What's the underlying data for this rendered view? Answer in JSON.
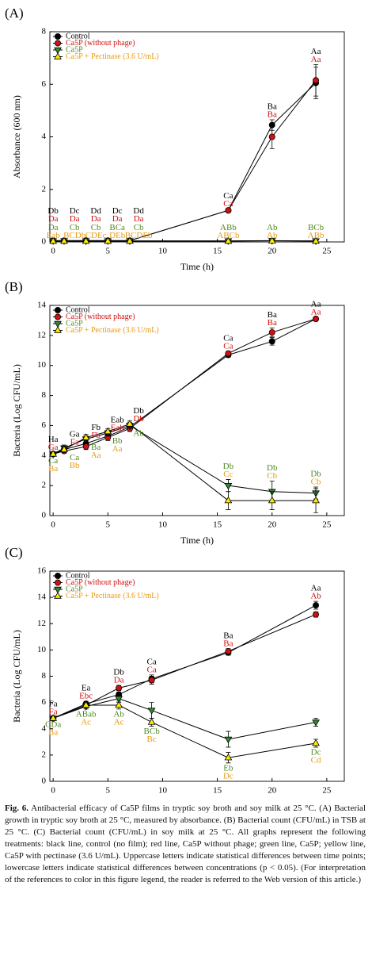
{
  "chart_data": [
    {
      "type": "line",
      "panel": "(A)",
      "y_label": "Absorbance (600 nm)",
      "x_label": "Time (h)",
      "legend": "upper left",
      "x": [
        0,
        1,
        3,
        5,
        7,
        16,
        20,
        24
      ],
      "xlim": [
        -0.3,
        26.6
      ],
      "xticks": [
        0,
        5,
        10,
        15,
        20,
        25
      ],
      "ylim": [
        0,
        8
      ],
      "yticks": [
        0,
        2,
        4,
        6,
        8
      ],
      "series": [
        {
          "name": "Control",
          "color": "#000000",
          "label_color": "#000000",
          "marker": "circle",
          "values": [
            0.05,
            0.05,
            0.05,
            0.05,
            0.05,
            1.2,
            4.45,
            6.05
          ],
          "errors": [
            0,
            0,
            0,
            0,
            0,
            0.05,
            0.2,
            0.6
          ],
          "point_labels": [
            "Db",
            "Dc",
            "Dd",
            "Dc",
            "Dd",
            "Ca",
            "Ba",
            "Aa"
          ]
        },
        {
          "name": "Ca5P (without phage)",
          "color": "#d01010",
          "label_color": "#d01010",
          "marker": "circle",
          "values": [
            0.05,
            0.05,
            0.05,
            0.05,
            0.05,
            1.2,
            4.0,
            6.15
          ],
          "errors": [
            0,
            0,
            0,
            0,
            0,
            0.05,
            0.45,
            0.6
          ],
          "point_labels": [
            "Da",
            "Da",
            "Da",
            "Da",
            "Da",
            "Ca",
            "Ba",
            "Aa"
          ]
        },
        {
          "name": "Ca5P",
          "color": "#2e8b2e",
          "label_color": "#4f8a22",
          "marker": "triangle-down",
          "values": [
            0.04,
            0.04,
            0.04,
            0.04,
            0.04,
            0.04,
            0.05,
            0.04
          ],
          "errors": [
            0,
            0,
            0,
            0,
            0,
            0,
            0,
            0
          ],
          "point_labels": [
            "Da",
            "Cb",
            "Cb",
            "BCa",
            "Cb",
            "ABb",
            "Ab",
            "BCb"
          ]
        },
        {
          "name": "Ca5P + Pectinase (3.6 U/mL)",
          "color": "#ffee00",
          "label_color": "#e89a10",
          "marker": "triangle-up",
          "values": [
            0.03,
            0.03,
            0.03,
            0.03,
            0.03,
            0.03,
            0.04,
            0.03
          ],
          "errors": [
            0,
            0,
            0,
            0,
            0,
            0,
            0,
            0
          ],
          "point_labels": [
            "Eab",
            "BCDb",
            "CDEc",
            "DEb",
            "BCDEb",
            "ABCb",
            "Ab",
            "ABb"
          ]
        }
      ]
    },
    {
      "type": "line",
      "panel": "(B)",
      "y_label": "Bacteria (Log CFU/mL)",
      "x_label": "Time (h)",
      "legend": "upper left",
      "x": [
        0,
        1,
        3,
        5,
        7,
        16,
        20,
        24
      ],
      "xlim": [
        -0.3,
        26.6
      ],
      "xticks": [
        0,
        5,
        10,
        15,
        20,
        25
      ],
      "ylim": [
        0,
        14
      ],
      "yticks": [
        0,
        2,
        4,
        6,
        8,
        10,
        12,
        14
      ],
      "series": [
        {
          "name": "Control",
          "color": "#000000",
          "label_color": "#000000",
          "marker": "circle",
          "values": [
            4.1,
            4.4,
            4.8,
            5.3,
            5.9,
            10.7,
            11.6,
            13.1
          ],
          "errors": [
            0.1,
            0.15,
            0.2,
            0.2,
            0.2,
            0.15,
            0.25,
            0.1
          ],
          "point_labels": [
            "Ha",
            "Ga",
            "Fb",
            "Eab",
            "Db",
            "Ca",
            "Ba",
            "Aa"
          ]
        },
        {
          "name": "Ca5P (without phage)",
          "color": "#d01010",
          "label_color": "#d01010",
          "marker": "circle",
          "values": [
            4.1,
            4.3,
            4.6,
            5.2,
            5.8,
            10.8,
            12.2,
            13.1
          ],
          "errors": [
            0.1,
            0.15,
            0.2,
            0.2,
            0.2,
            0.15,
            0.3,
            0.1
          ],
          "point_labels": [
            "Ga",
            "Fa",
            "Fb",
            "Eab",
            "Db",
            "Ca",
            "Ba",
            "Aa"
          ]
        },
        {
          "name": "Ca5P",
          "color": "#2e8b2e",
          "label_color": "#4f8a22",
          "marker": "triangle-down",
          "values": [
            4.1,
            4.5,
            5.1,
            5.5,
            6.0,
            2.0,
            1.6,
            1.5
          ],
          "errors": [
            0.1,
            0.2,
            0.2,
            0.2,
            0.2,
            0.4,
            0.7,
            0.4
          ],
          "point_labels": [
            "Ca",
            "Ca",
            "Ba",
            "Bb",
            "Ab",
            "Db",
            "Db",
            "Db"
          ]
        },
        {
          "name": "Ca5P + Pectinase (3.6 U/mL)",
          "color": "#ffee00",
          "label_color": "#e89a10",
          "marker": "triangle-up",
          "values": [
            4.1,
            4.4,
            5.2,
            5.6,
            6.1,
            1.0,
            1.0,
            1.0
          ],
          "errors": [
            0.1,
            0.2,
            0.2,
            0.2,
            0.2,
            0.6,
            0.6,
            0.8
          ],
          "point_labels": [
            "Ba",
            "Bb",
            "Aa",
            "Aa",
            null,
            "Cc",
            "Cb",
            "Cb"
          ]
        }
      ]
    },
    {
      "type": "line",
      "panel": "(C)",
      "y_label": "Bacteria (Log CFU/mL)",
      "x_label": "Time (h)",
      "legend": "upper left",
      "x": [
        0,
        3,
        6,
        9,
        16,
        24
      ],
      "xlim": [
        -0.3,
        26.6
      ],
      "xticks": [
        0,
        5,
        10,
        15,
        20,
        25
      ],
      "ylim": [
        0,
        16
      ],
      "yticks": [
        0,
        2,
        4,
        6,
        8,
        10,
        12,
        14,
        16
      ],
      "series": [
        {
          "name": "Control",
          "color": "#000000",
          "label_color": "#000000",
          "marker": "circle",
          "values": [
            4.8,
            5.9,
            6.6,
            7.8,
            9.8,
            13.4
          ],
          "errors": [
            0.1,
            0.2,
            0.2,
            0.3,
            0.2,
            0.3
          ],
          "point_labels": [
            "Fa",
            "Ea",
            "Db",
            "Ca",
            "Ba",
            "Aa"
          ]
        },
        {
          "name": "Ca5P (without phage)",
          "color": "#d01010",
          "label_color": "#d01010",
          "marker": "circle",
          "values": [
            4.8,
            5.8,
            7.1,
            7.7,
            9.9,
            12.7
          ],
          "errors": [
            0.1,
            0.2,
            0.2,
            0.3,
            0.2,
            0.2
          ],
          "point_labels": [
            "Fa",
            "Ebc",
            "Da",
            "Ca",
            "Ba",
            "Ab"
          ]
        },
        {
          "name": "Ca5P",
          "color": "#2e8b2e",
          "label_color": "#4f8a22",
          "marker": "triangle-down",
          "values": [
            4.8,
            5.7,
            6.3,
            5.4,
            3.2,
            4.5
          ],
          "errors": [
            0.1,
            0.2,
            0.3,
            0.6,
            0.6,
            0.3
          ],
          "point_labels": [
            "CDa",
            "ABab",
            "Ab",
            "BCb",
            "Eb",
            "Dc"
          ]
        },
        {
          "name": "Ca5P + Pectinase (3.6 U/mL)",
          "color": "#ffee00",
          "label_color": "#e89a10",
          "marker": "triangle-up",
          "values": [
            4.8,
            5.8,
            5.8,
            4.5,
            1.8,
            2.9
          ],
          "errors": [
            0.1,
            0.2,
            0.3,
            0.3,
            0.4,
            0.3
          ],
          "point_labels": [
            "Ba",
            "Ac",
            "Ac",
            "Bc",
            "Dc",
            "Cd"
          ]
        }
      ]
    }
  ],
  "caption": {
    "label": "Fig. 6.",
    "text": "Antibacterial efficacy of Ca5P films in tryptic soy broth and soy milk at 25 °C. (A) Bacterial growth in tryptic soy broth at 25 °C, measured by absorbance. (B) Bacterial count (CFU/mL) in TSB at 25 °C. (C) Bacterial count (CFU/mL) in soy milk at 25 °C. All graphs represent the following treatments: black line, control (no film); red line, Ca5P without phage; green line, Ca5P; yellow line, Ca5P with pectinase (3.6 U/mL). Uppercase letters indicate statistical differences between time points; lowercase letters indicate statistical differences between concentrations (p < 0.05). (For interpretation of the references to color in this figure legend, the reader is referred to the Web version of this article.)"
  }
}
